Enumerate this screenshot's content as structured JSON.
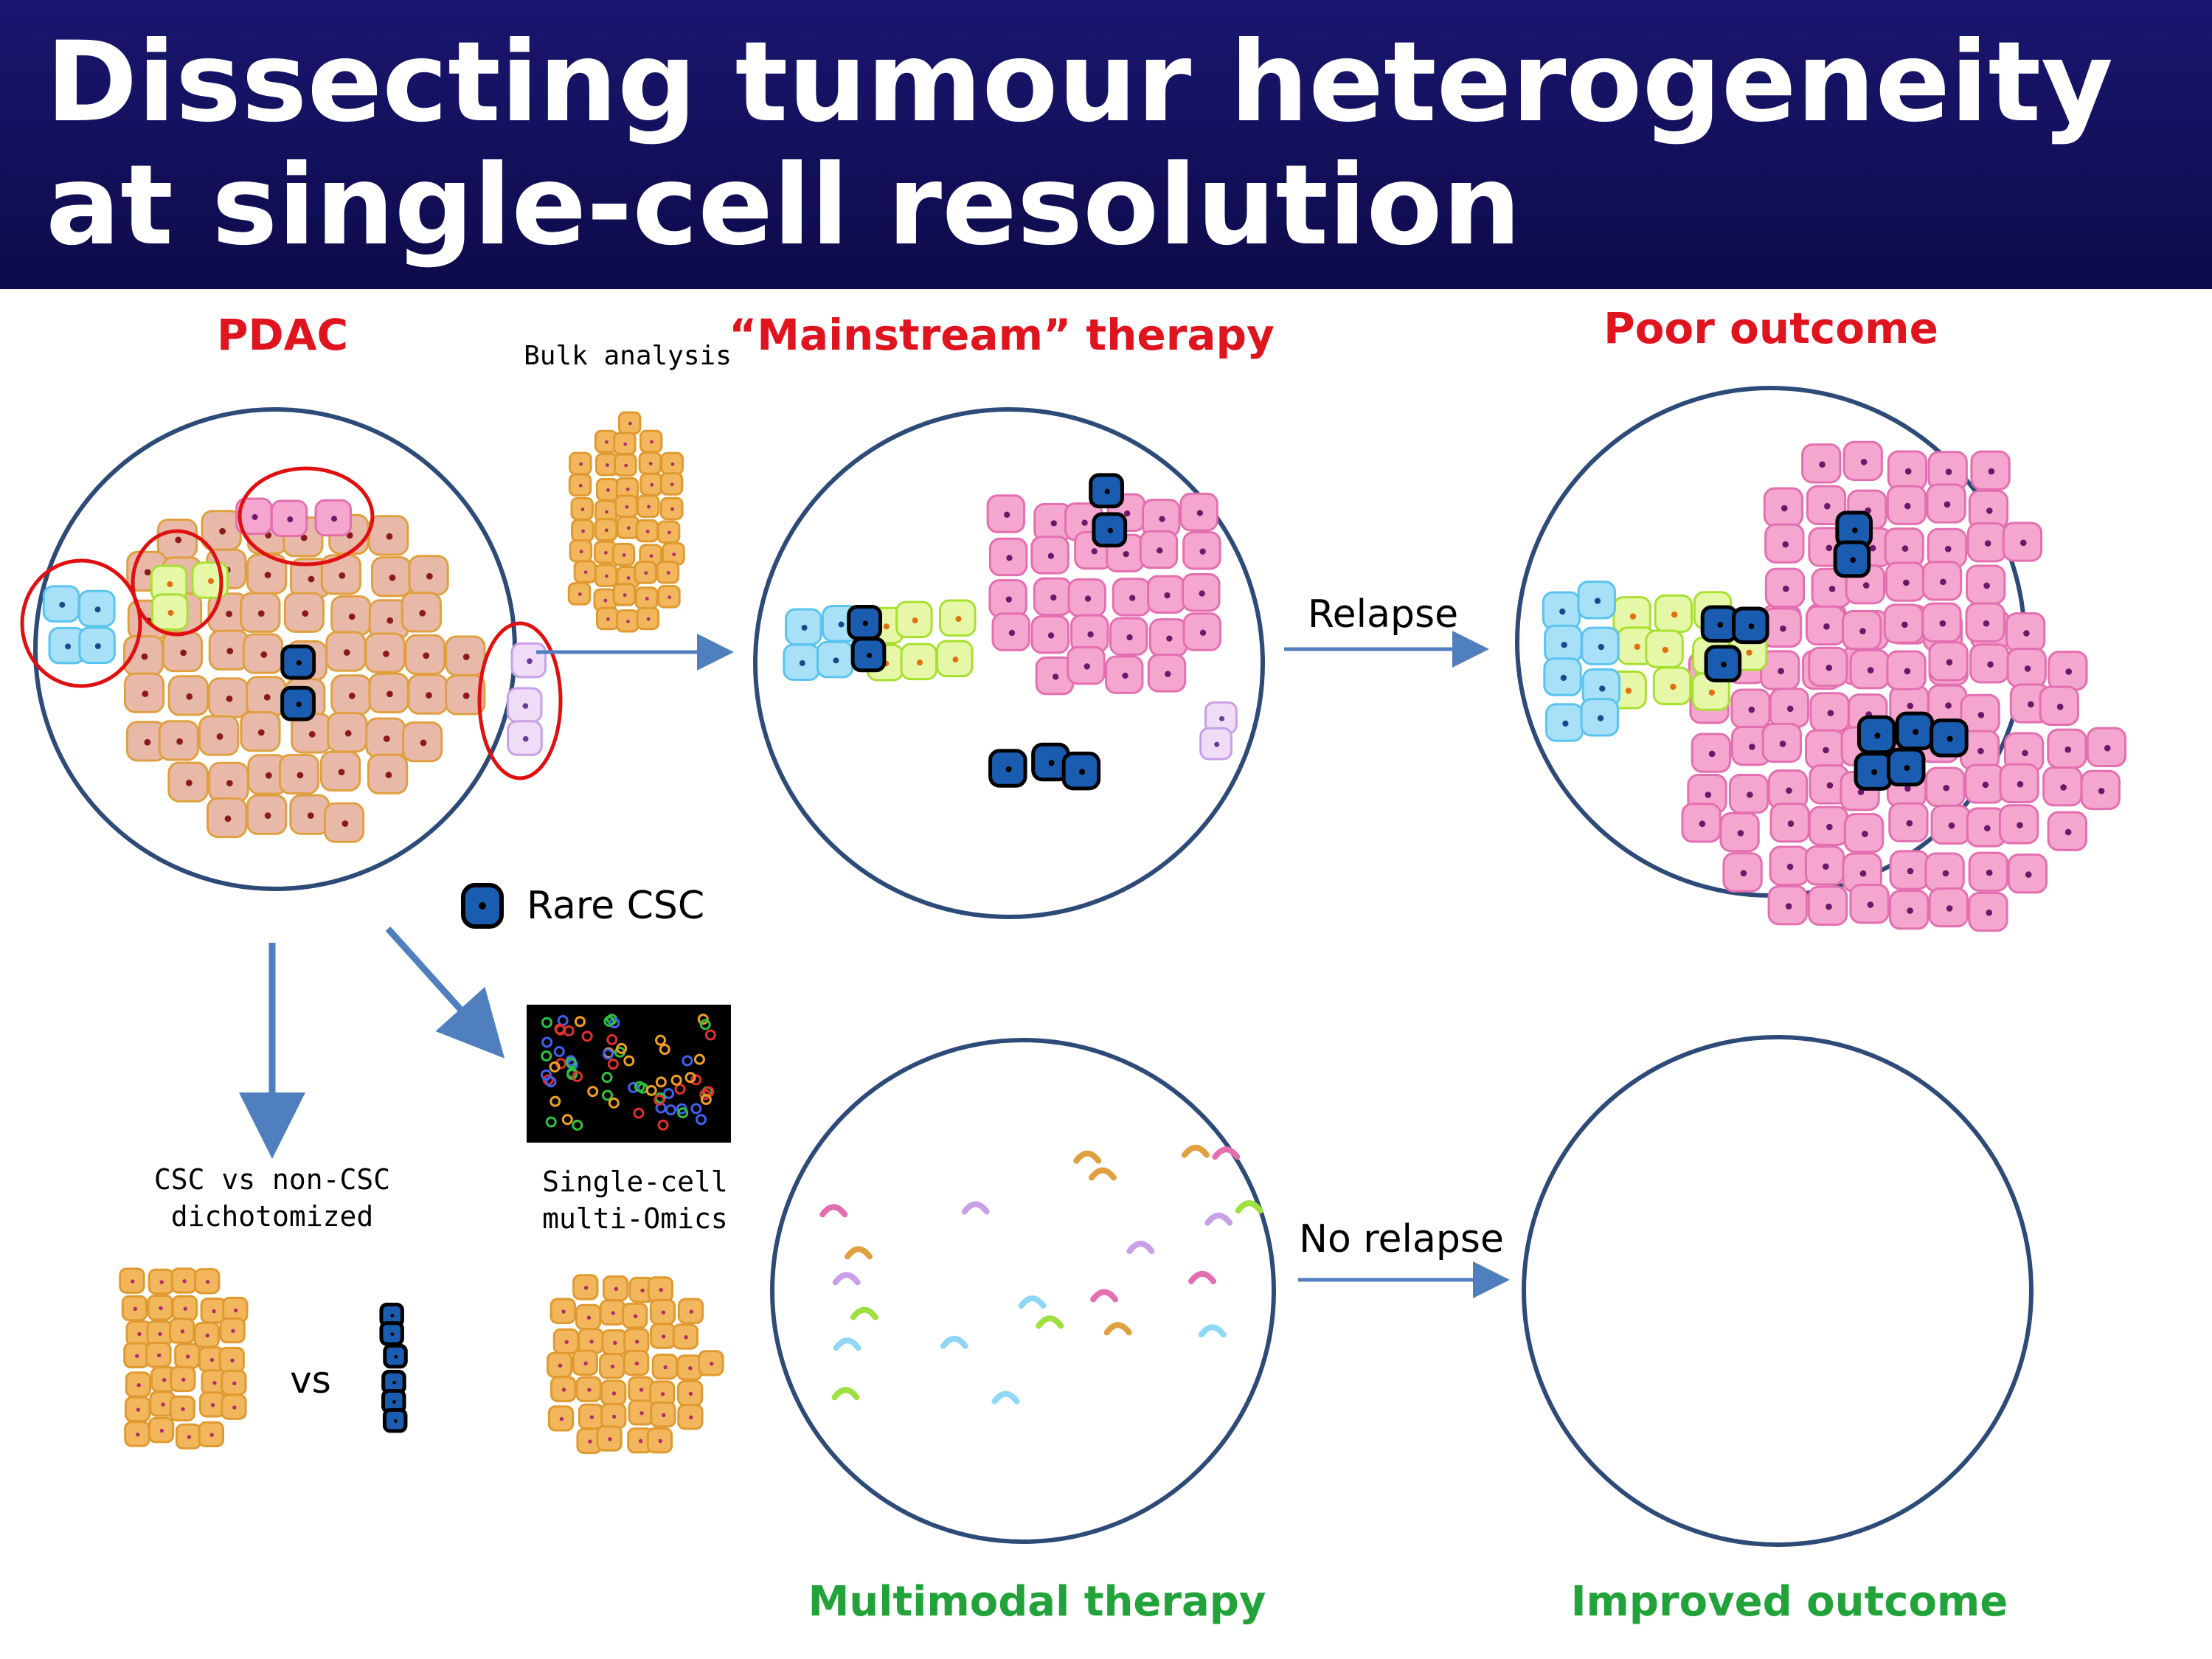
{
  "header": {
    "title_lines": [
      "Dissecting tumour heterogeneity",
      "at single-cell resolution"
    ]
  },
  "labels": {
    "pdac": "PDAC",
    "bulk_analysis": "Bulk analysis",
    "mainstream_therapy": "“Mainstream” therapy",
    "poor_outcome": "Poor outcome",
    "relapse": "Relapse",
    "rare_csc": "Rare CSC",
    "csc_vs_non_csc": [
      "CSC vs non-CSC",
      "dichotomized"
    ],
    "single_cell": [
      "Single-cell",
      "multi-Omics"
    ],
    "vs": "vs",
    "no_relapse": "No relapse",
    "multimodal_therapy": "Multimodal therapy",
    "improved_outcome": "Improved outcome"
  }
}
